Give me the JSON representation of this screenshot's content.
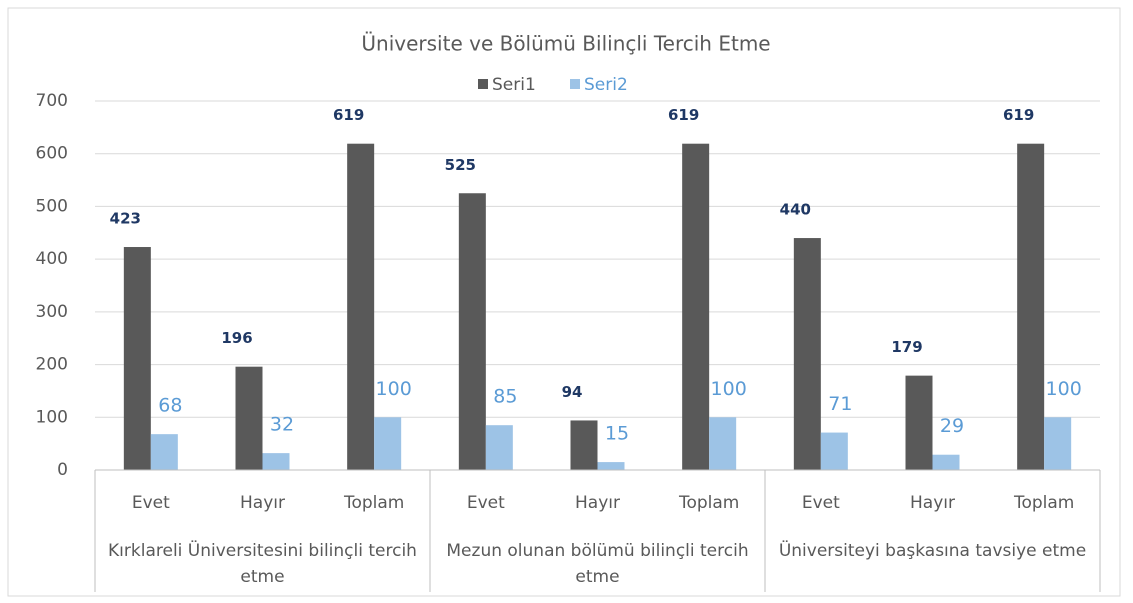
{
  "chart_data": {
    "type": "bar",
    "title": "Üniversite ve Bölümü Bilinçli Tercih Etme",
    "categories": [
      "Evet",
      "Hayır",
      "Toplam",
      "Evet",
      "Hayır",
      "Toplam",
      "Evet",
      "Hayır",
      "Toplam"
    ],
    "groups": [
      {
        "label": "Kırklareli Üniversitesini bilinçli tercih etme",
        "span": 3
      },
      {
        "label": "Mezun olunan bölümü bilinçli tercih etme",
        "span": 3
      },
      {
        "label": "Üniversiteyi başkasına tavsiye etme",
        "span": 3
      }
    ],
    "series": [
      {
        "name": "Seri1",
        "color": "#595959",
        "label_color": "#1f3864",
        "values": [
          423,
          196,
          619,
          525,
          94,
          619,
          440,
          179,
          619
        ]
      },
      {
        "name": "Seri2",
        "color": "#9dc3e6",
        "label_color": "#5b9bd5",
        "values": [
          68,
          32,
          100,
          85,
          15,
          100,
          71,
          29,
          100
        ]
      }
    ],
    "ylim": [
      0,
      700
    ],
    "yticks": [
      0,
      100,
      200,
      300,
      400,
      500,
      600,
      700
    ],
    "grid": true,
    "legend": "top"
  }
}
